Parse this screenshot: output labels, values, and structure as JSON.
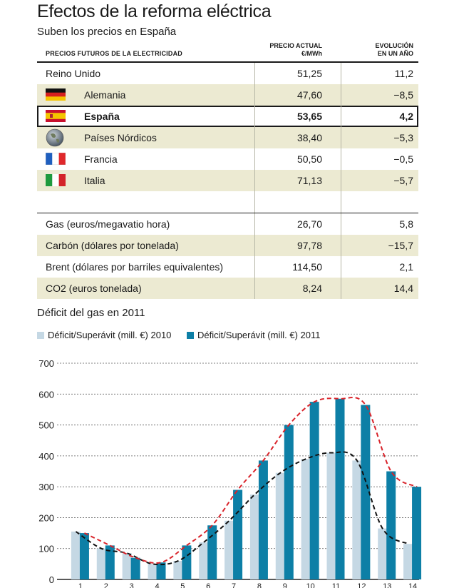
{
  "title": "Efectos de la reforma eléctrica",
  "subtitle": "Suben los precios en España",
  "table": {
    "header_label": "PRECIOS FUTUROS DE LA ELECTRICIDAD",
    "col_price": "PRECIO ACTUAL\n€/MWh",
    "col_change": "EVOLUCIÓN\nEN UN AÑO",
    "countries": [
      {
        "name": "Reino Unido",
        "price": "51,25",
        "change": "11,2",
        "icon": "none"
      },
      {
        "name": "Alemania",
        "price": "47,60",
        "change": "−8,5",
        "icon": "germany-flag-icon"
      },
      {
        "name": "España",
        "price": "53,65",
        "change": "4,2",
        "icon": "spain-flag-icon"
      },
      {
        "name": "Países Nórdicos",
        "price": "38,40",
        "change": "−5,3",
        "icon": "globe-icon"
      },
      {
        "name": "Francia",
        "price": "50,50",
        "change": "−0,5",
        "icon": "france-flag-icon"
      },
      {
        "name": "Italia",
        "price": "71,13",
        "change": "−5,7",
        "icon": "italy-flag-icon"
      }
    ],
    "commodities": [
      {
        "name": "Gas (euros/megavatio hora)",
        "price": "26,70",
        "change": "5,8"
      },
      {
        "name": "Carbón (dólares por tonelada)",
        "price": "97,78",
        "change": "−15,7"
      },
      {
        "name": "Brent (dólares por barriles equivalentes)",
        "price": "114,50",
        "change": "2,1"
      },
      {
        "name": "CO2 (euros tonelada)",
        "price": "8,24",
        "change": "14,4"
      }
    ]
  },
  "colors": {
    "shade": "#ecead2",
    "bar_2010": "#c5d8e4",
    "bar_2011": "#0d7fa6",
    "line_2011": "#d9232a",
    "line_2010": "#111111"
  },
  "chart_data": {
    "type": "bar",
    "title": "Déficit del gas en 2011",
    "categories": [
      "1",
      "2",
      "3",
      "4",
      "5",
      "6",
      "7",
      "8",
      "9",
      "10",
      "11",
      "12",
      "13",
      "14"
    ],
    "series": [
      {
        "name": "Déficit/Superávit (mill. €) 2010",
        "values": [
          155,
          100,
          85,
          50,
          60,
          120,
          190,
          275,
          345,
          390,
          410,
          385,
          165,
          115
        ]
      },
      {
        "name": "Déficit/Superávit (mill. €) 2011",
        "values": [
          150,
          110,
          70,
          55,
          110,
          175,
          290,
          385,
          500,
          575,
          585,
          565,
          350,
          300
        ]
      }
    ],
    "ylim": [
      0,
      700
    ],
    "yticks": [
      0,
      100,
      200,
      300,
      400,
      500,
      600,
      700
    ],
    "grid": true,
    "legend": "top-left"
  }
}
